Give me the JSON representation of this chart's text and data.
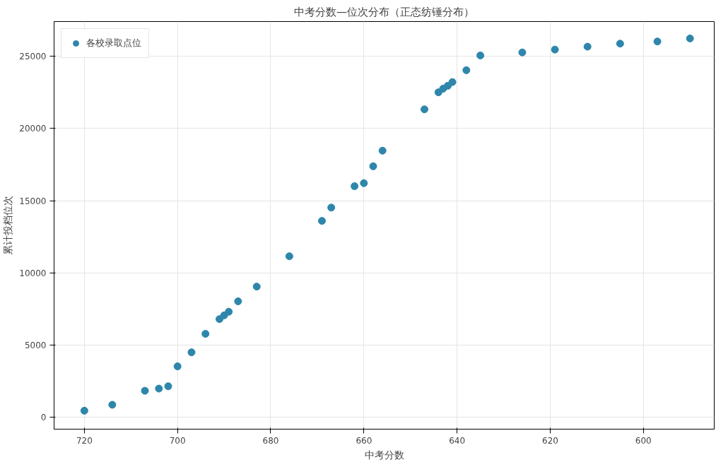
{
  "chart_data": {
    "type": "scatter",
    "title": "中考分数—位次分布（正态纺锤分布）",
    "xlabel": "中考分数",
    "ylabel": "累计投档位次",
    "x": [
      720,
      714,
      707,
      704,
      702,
      700,
      697,
      694,
      691,
      690,
      689,
      687,
      683,
      676,
      669,
      667,
      662,
      660,
      658,
      656,
      647,
      644,
      643,
      642,
      641,
      638,
      635,
      626,
      619,
      612,
      605,
      597,
      590
    ],
    "series": [
      {
        "name": "各校录取点位",
        "color": "#2e86ab",
        "values": [
          460,
          870,
          1840,
          1990,
          2150,
          3530,
          4500,
          5780,
          6800,
          7060,
          7310,
          8030,
          9050,
          11150,
          13600,
          14520,
          16000,
          16210,
          17380,
          18460,
          21320,
          22500,
          22750,
          22950,
          23210,
          24030,
          25050,
          25260,
          25460,
          25660,
          25870,
          26020,
          26230
        ]
      }
    ],
    "xlim": [
      726.5,
      584.8
    ],
    "ylim": [
      -818,
      27400
    ],
    "xticks": [
      720,
      700,
      680,
      660,
      640,
      620,
      600
    ],
    "yticks": [
      0,
      5000,
      10000,
      15000,
      20000,
      25000
    ],
    "grid": true,
    "legend": "top left",
    "marker": "circle"
  }
}
